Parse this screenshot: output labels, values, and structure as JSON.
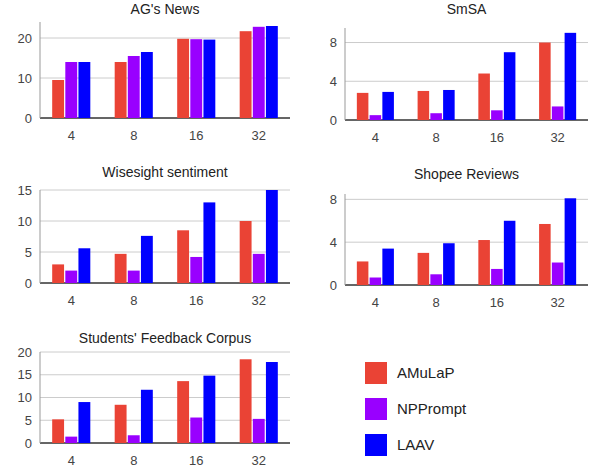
{
  "chart_data": [
    {
      "type": "bar",
      "title": "AG's News",
      "categories": [
        "4",
        "8",
        "16",
        "32"
      ],
      "series": [
        {
          "name": "AMuLaP",
          "color": "#ea4335",
          "values": [
            9.5,
            14,
            19.8,
            21.7
          ]
        },
        {
          "name": "NPPrompt",
          "color": "#9900ff",
          "values": [
            14,
            15.5,
            19.7,
            22.8
          ]
        },
        {
          "name": "LAAV",
          "color": "#0000ff",
          "values": [
            14,
            16.5,
            19.6,
            23
          ]
        }
      ],
      "ylim": [
        0,
        24
      ],
      "yticks": [
        0,
        10,
        20
      ],
      "grid": true,
      "legend": "bottom-right"
    },
    {
      "type": "bar",
      "title": "SmSA",
      "categories": [
        "4",
        "8",
        "16",
        "32"
      ],
      "series": [
        {
          "color": "#ea4335",
          "values": [
            2.8,
            3.0,
            4.8,
            8.0
          ]
        },
        {
          "color": "#9900ff",
          "values": [
            0.5,
            0.7,
            1.0,
            1.4
          ]
        },
        {
          "color": "#0000ff",
          "values": [
            2.9,
            3.1,
            7.0,
            9.0
          ]
        }
      ],
      "ylim": [
        0,
        9.5
      ],
      "yticks": [
        0,
        4,
        8
      ],
      "grid": true
    },
    {
      "type": "bar",
      "title": "Wisesight sentiment",
      "categories": [
        "4",
        "8",
        "16",
        "32"
      ],
      "series": [
        {
          "color": "#ea4335",
          "values": [
            3,
            4.7,
            8.5,
            10
          ]
        },
        {
          "color": "#9900ff",
          "values": [
            2,
            2,
            4.2,
            4.7
          ]
        },
        {
          "color": "#0000ff",
          "values": [
            5.6,
            7.6,
            13,
            15
          ]
        }
      ],
      "ylim": [
        0,
        15
      ],
      "yticks": [
        0,
        5,
        10,
        15
      ],
      "grid": true
    },
    {
      "type": "bar",
      "title": "Shopee Reviews",
      "categories": [
        "4",
        "8",
        "16",
        "32"
      ],
      "series": [
        {
          "color": "#ea4335",
          "values": [
            2.2,
            3.0,
            4.2,
            5.7
          ]
        },
        {
          "color": "#9900ff",
          "values": [
            0.7,
            1.0,
            1.5,
            2.1
          ]
        },
        {
          "color": "#0000ff",
          "values": [
            3.4,
            3.9,
            6.0,
            8.1
          ]
        }
      ],
      "ylim": [
        0,
        8.5
      ],
      "yticks": [
        0,
        4,
        8
      ],
      "grid": true
    },
    {
      "type": "bar",
      "title": "Students' Feedback Corpus",
      "categories": [
        "4",
        "8",
        "16",
        "32"
      ],
      "series": [
        {
          "color": "#ea4335",
          "values": [
            5.2,
            8.4,
            13.6,
            18.4
          ]
        },
        {
          "color": "#9900ff",
          "values": [
            1.4,
            1.7,
            5.6,
            5.3
          ]
        },
        {
          "color": "#0000ff",
          "values": [
            9,
            11.7,
            14.8,
            17.8
          ]
        }
      ],
      "ylim": [
        0,
        20
      ],
      "yticks": [
        0,
        5,
        10,
        15,
        20
      ],
      "grid": true
    }
  ]
}
